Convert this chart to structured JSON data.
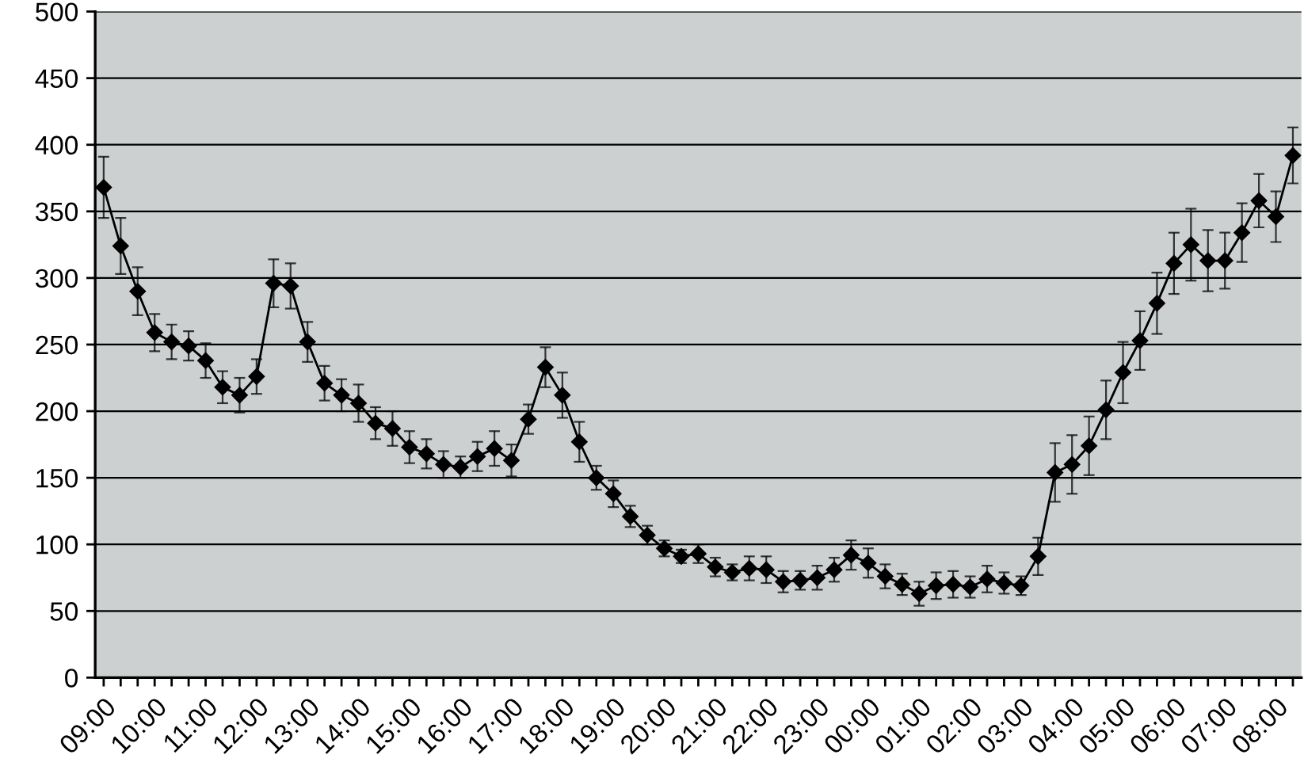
{
  "chart_data": {
    "type": "line",
    "categories": [
      "09:00",
      null,
      null,
      "10:00",
      null,
      null,
      "11:00",
      null,
      null,
      "12:00",
      null,
      null,
      "13:00",
      null,
      null,
      "14:00",
      null,
      null,
      "15:00",
      null,
      null,
      "16:00",
      null,
      null,
      "17:00",
      null,
      null,
      "18:00",
      null,
      null,
      "19:00",
      null,
      null,
      "20:00",
      null,
      null,
      "21:00",
      null,
      null,
      "22:00",
      null,
      null,
      "23:00",
      null,
      null,
      "00:00",
      null,
      null,
      "01:00",
      null,
      null,
      "02:00",
      null,
      null,
      "03:00",
      null,
      null,
      "04:00",
      null,
      null,
      "05:00",
      null,
      null,
      "06:00",
      null,
      null,
      "07:00",
      null,
      null,
      "08:00",
      null
    ],
    "series": [
      {
        "color": "#000000",
        "values": [
          368,
          324,
          290,
          259,
          252,
          249,
          238,
          218,
          212,
          226,
          296,
          294,
          252,
          221,
          212,
          206,
          191,
          187,
          173,
          168,
          160,
          158,
          166,
          172,
          163,
          194,
          233,
          212,
          177,
          150,
          138,
          121,
          107,
          97,
          91,
          93,
          83,
          79,
          82,
          81,
          72,
          73,
          75,
          81,
          92,
          86,
          76,
          70,
          63,
          69,
          70,
          68,
          74,
          71,
          69,
          91,
          154,
          160,
          174,
          201,
          229,
          253,
          281,
          311,
          325,
          313,
          313,
          334,
          358,
          346,
          392
        ],
        "errors": [
          23,
          21,
          18,
          14,
          13,
          11,
          13,
          12,
          13,
          13,
          18,
          17,
          15,
          13,
          12,
          14,
          12,
          13,
          12,
          11,
          10,
          8,
          11,
          13,
          12,
          11,
          15,
          17,
          15,
          9,
          10,
          8,
          7,
          6,
          5,
          7,
          7,
          6,
          9,
          10,
          8,
          7,
          9,
          9,
          11,
          11,
          9,
          8,
          9,
          10,
          10,
          8,
          10,
          8,
          7,
          14,
          22,
          22,
          22,
          22,
          23,
          22,
          23,
          23,
          27,
          23,
          21,
          22,
          20,
          19,
          21
        ]
      }
    ],
    "ylim": [
      0,
      500
    ],
    "yticks": [
      0,
      50,
      100,
      150,
      200,
      250,
      300,
      350,
      400,
      450,
      500
    ],
    "grid": "y",
    "marker": "diamond",
    "line_style": "solid"
  }
}
